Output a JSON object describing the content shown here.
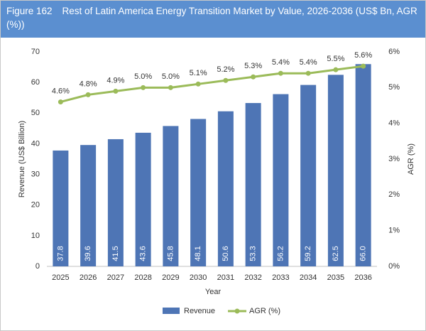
{
  "chart_data": {
    "type": "bar_line",
    "figure_label": "Figure 162",
    "title": "Rest of Latin America Energy Transition Market by Value, 2026-2036 (US$ Bn, AGR (%))",
    "x_label": "Year",
    "y_label": "Revenue (US$ Billion)",
    "y2_label": "AGR (%)",
    "categories": [
      "2025",
      "2026",
      "2027",
      "2028",
      "2029",
      "2030",
      "2031",
      "2032",
      "2033",
      "2034",
      "2035",
      "2036"
    ],
    "series": [
      {
        "name": "Revenue",
        "type": "bar",
        "color": "#4e75b5",
        "values": [
          37.8,
          39.6,
          41.5,
          43.6,
          45.8,
          48.1,
          50.6,
          53.3,
          56.2,
          59.2,
          62.5,
          66.0
        ],
        "value_labels": [
          "37.8",
          "39.6",
          "41.5",
          "43.6",
          "45.8",
          "48.1",
          "50.6",
          "53.3",
          "56.2",
          "59.2",
          "62.5",
          "66.0"
        ]
      },
      {
        "name": "AGR (%)",
        "type": "line",
        "axis": "y2",
        "color": "#9bbb59",
        "values": [
          4.6,
          4.8,
          4.9,
          5.0,
          5.0,
          5.1,
          5.2,
          5.3,
          5.4,
          5.4,
          5.5,
          5.6
        ],
        "value_labels": [
          "4.6%",
          "4.8%",
          "4.9%",
          "5.0%",
          "5.0%",
          "5.1%",
          "5.2%",
          "5.3%",
          "5.4%",
          "5.4%",
          "5.5%",
          "5.6%"
        ]
      }
    ],
    "ylim": [
      0,
      70
    ],
    "yticks": [
      0,
      10,
      20,
      30,
      40,
      50,
      60,
      70
    ],
    "y2lim": [
      0,
      6
    ],
    "y2ticks": [
      {
        "value": 0,
        "label": "0%"
      },
      {
        "value": 1,
        "label": "1%"
      },
      {
        "value": 2,
        "label": "2%"
      },
      {
        "value": 3,
        "label": "3%"
      },
      {
        "value": 4,
        "label": "4%"
      },
      {
        "value": 5,
        "label": "5%"
      },
      {
        "value": 6,
        "label": "6%"
      }
    ],
    "legend": "bottom"
  }
}
